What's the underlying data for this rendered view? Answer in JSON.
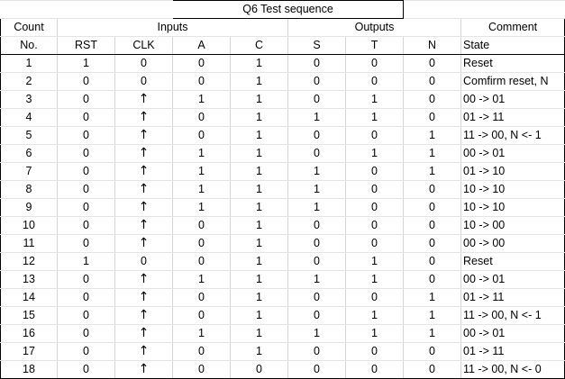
{
  "title": "Q6 Test sequence",
  "groups": {
    "count": "Count",
    "inputs": "Inputs",
    "outputs": "Outputs",
    "comment": "Comment"
  },
  "columns": [
    "No.",
    "RST",
    "CLK",
    "A",
    "C",
    "S",
    "T",
    "N",
    "State"
  ],
  "rows": [
    [
      "1",
      "1",
      "0",
      "0",
      "1",
      "0",
      "0",
      "0",
      "Reset"
    ],
    [
      "2",
      "0",
      "0",
      "0",
      "1",
      "0",
      "0",
      "0",
      "Comfirm reset, N"
    ],
    [
      "3",
      "0",
      "↑",
      "1",
      "1",
      "0",
      "1",
      "0",
      "00 -> 01"
    ],
    [
      "4",
      "0",
      "↑",
      "0",
      "1",
      "1",
      "1",
      "0",
      "01 -> 11"
    ],
    [
      "5",
      "0",
      "↑",
      "0",
      "1",
      "0",
      "0",
      "1",
      "11 -> 00, N <- 1"
    ],
    [
      "6",
      "0",
      "↑",
      "1",
      "1",
      "0",
      "1",
      "1",
      "00 -> 01"
    ],
    [
      "7",
      "0",
      "↑",
      "1",
      "1",
      "1",
      "0",
      "1",
      "01 -> 10"
    ],
    [
      "8",
      "0",
      "↑",
      "1",
      "1",
      "1",
      "0",
      "0",
      "10 -> 10"
    ],
    [
      "9",
      "0",
      "↑",
      "1",
      "1",
      "1",
      "0",
      "0",
      "10 -> 10"
    ],
    [
      "10",
      "0",
      "↑",
      "0",
      "1",
      "0",
      "0",
      "0",
      "10 -> 00"
    ],
    [
      "11",
      "0",
      "↑",
      "0",
      "1",
      "0",
      "0",
      "0",
      "00 -> 00"
    ],
    [
      "12",
      "1",
      "0",
      "0",
      "1",
      "0",
      "1",
      "0",
      "Reset"
    ],
    [
      "13",
      "0",
      "↑",
      "1",
      "1",
      "1",
      "1",
      "0",
      "00 -> 01"
    ],
    [
      "14",
      "0",
      "↑",
      "0",
      "1",
      "0",
      "0",
      "1",
      "01 -> 11"
    ],
    [
      "15",
      "0",
      "↑",
      "0",
      "1",
      "0",
      "1",
      "1",
      "11 -> 00, N <- 1"
    ],
    [
      "16",
      "0",
      "↑",
      "1",
      "1",
      "1",
      "1",
      "1",
      "00 -> 01"
    ],
    [
      "17",
      "0",
      "↑",
      "0",
      "1",
      "0",
      "0",
      "0",
      "01 -> 11"
    ],
    [
      "18",
      "0",
      "↑",
      "0",
      "0",
      "0",
      "0",
      "0",
      "11 -> 00, N <- 0"
    ]
  ]
}
